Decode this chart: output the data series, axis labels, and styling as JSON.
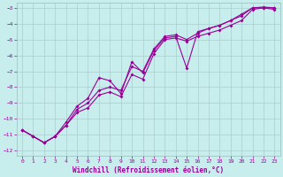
{
  "xlabel": "Windchill (Refroidissement éolien,°C)",
  "bg_color": "#c8eded",
  "grid_color": "#aacccc",
  "line_color": "#990099",
  "xlim": [
    -0.5,
    23.5
  ],
  "ylim": [
    -12.3,
    -2.7
  ],
  "yticks": [
    -12,
    -11,
    -10,
    -9,
    -8,
    -7,
    -6,
    -5,
    -4,
    -3
  ],
  "xticks": [
    0,
    1,
    2,
    3,
    4,
    5,
    6,
    7,
    8,
    9,
    10,
    11,
    12,
    13,
    14,
    15,
    16,
    17,
    18,
    19,
    20,
    21,
    22,
    23
  ],
  "line1_x": [
    0,
    1,
    2,
    3,
    4,
    5,
    6,
    7,
    8,
    9,
    10,
    11,
    12,
    13,
    14,
    15,
    16,
    17,
    18,
    19,
    20,
    21,
    22,
    23
  ],
  "line1_y": [
    -10.7,
    -11.1,
    -11.5,
    -11.1,
    -10.4,
    -9.6,
    -9.3,
    -8.5,
    -8.3,
    -8.6,
    -7.2,
    -7.5,
    -5.9,
    -5.0,
    -4.9,
    -5.1,
    -4.8,
    -4.6,
    -4.4,
    -4.1,
    -3.8,
    -3.1,
    -3.0,
    -3.1
  ],
  "line2_x": [
    0,
    1,
    2,
    3,
    4,
    5,
    6,
    7,
    8,
    9,
    10,
    11,
    12,
    13,
    14,
    15,
    16,
    17,
    18,
    19,
    20,
    21,
    22,
    23
  ],
  "line2_y": [
    -10.7,
    -11.1,
    -11.5,
    -11.1,
    -10.4,
    -9.4,
    -9.0,
    -8.2,
    -8.0,
    -8.2,
    -6.7,
    -7.0,
    -5.6,
    -4.8,
    -4.7,
    -5.0,
    -4.6,
    -4.3,
    -4.1,
    -3.8,
    -3.5,
    -3.0,
    -3.0,
    -3.0
  ],
  "line3_x": [
    0,
    1,
    2,
    3,
    4,
    5,
    6,
    7,
    8,
    9,
    10,
    11,
    12,
    13,
    14,
    15,
    16,
    17,
    18,
    19,
    20,
    21,
    22,
    23
  ],
  "line3_y": [
    -10.7,
    -11.1,
    -11.5,
    -11.1,
    -10.2,
    -9.2,
    -8.7,
    -7.4,
    -7.6,
    -8.4,
    -6.4,
    -7.1,
    -5.7,
    -4.9,
    -4.8,
    -6.8,
    -4.5,
    -4.3,
    -4.1,
    -3.8,
    -3.4,
    -3.0,
    -2.95,
    -3.0
  ]
}
